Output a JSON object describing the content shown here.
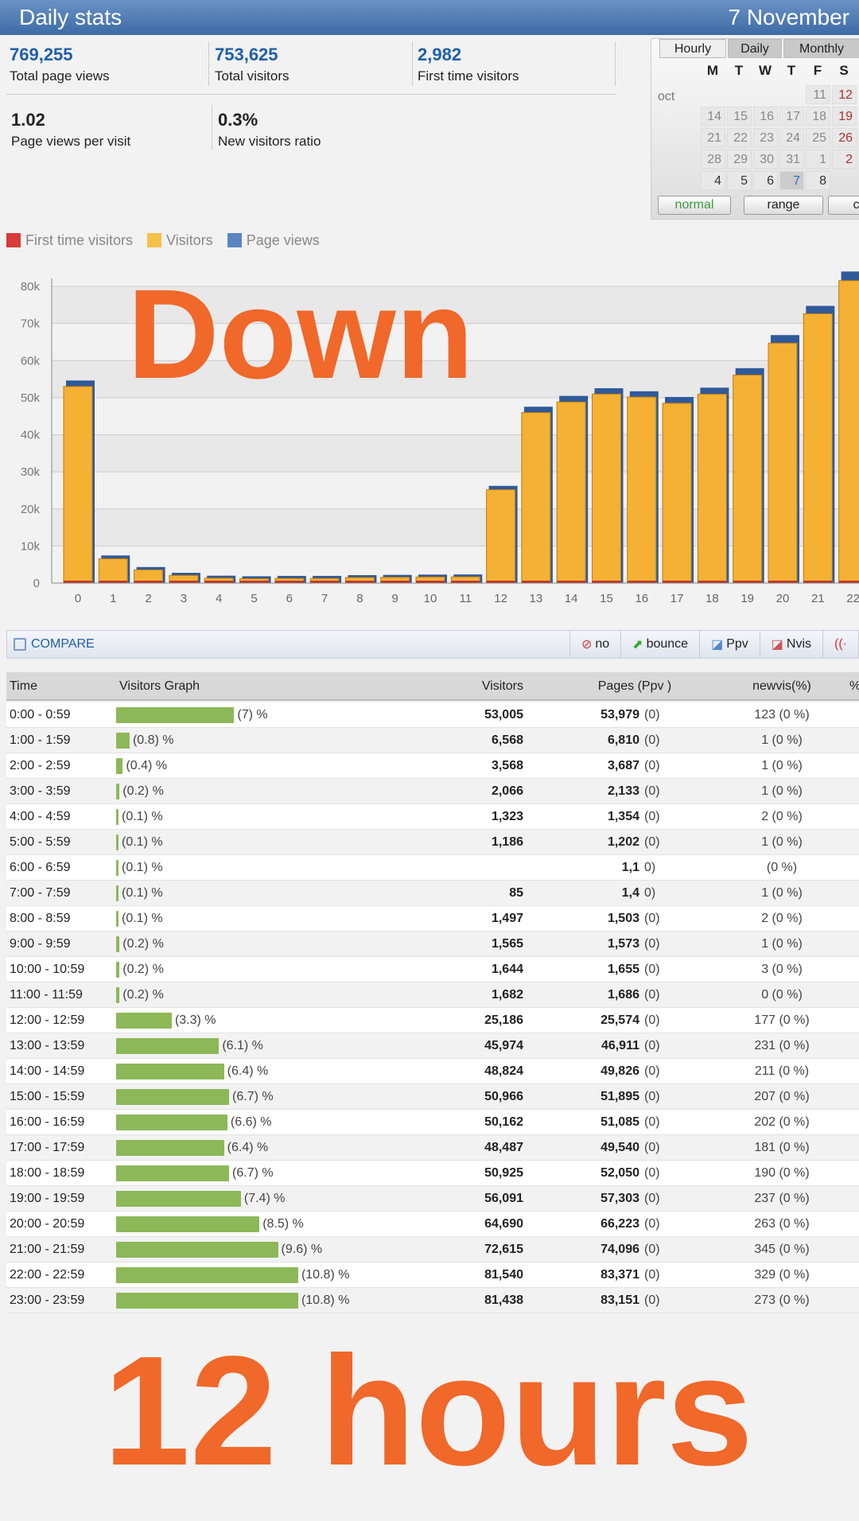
{
  "header": {
    "title": "Daily stats",
    "date": "7 November"
  },
  "stats": [
    {
      "value": "769,255",
      "label": "Total page views"
    },
    {
      "value": "753,625",
      "label": "Total visitors"
    },
    {
      "value": "2,982",
      "label": "First time visitors"
    },
    {
      "value": "1.02",
      "label": "Page views per visit"
    },
    {
      "value": "0.3%",
      "label": "New visitors ratio"
    }
  ],
  "calendar": {
    "tabs": [
      "Hourly",
      "Daily",
      "Monthly"
    ],
    "weekdays": [
      "M",
      "T",
      "W",
      "T",
      "F",
      "S"
    ],
    "month": "oct",
    "weeks": [
      [
        "",
        "",
        "",
        "",
        "11",
        "12"
      ],
      [
        "14",
        "15",
        "16",
        "17",
        "18",
        "19"
      ],
      [
        "21",
        "22",
        "23",
        "24",
        "25",
        "26"
      ],
      [
        "28",
        "29",
        "30",
        "31",
        "1",
        "2"
      ],
      [
        "4",
        "5",
        "6",
        "7",
        "8",
        ""
      ]
    ],
    "selected": "7",
    "buttons": [
      "normal",
      "range",
      "co"
    ]
  },
  "legend": [
    {
      "label": "First time visitors",
      "color": "#d93a3a"
    },
    {
      "label": "Visitors",
      "color": "#f5c04a"
    },
    {
      "label": "Page views",
      "color": "#5a86c0"
    }
  ],
  "chart_data": {
    "type": "bar",
    "categories": [
      "0",
      "1",
      "2",
      "3",
      "4",
      "5",
      "6",
      "7",
      "8",
      "9",
      "10",
      "11",
      "12",
      "13",
      "14",
      "15",
      "16",
      "17",
      "18",
      "19",
      "20",
      "21",
      "22"
    ],
    "ylim": [
      0,
      80000
    ],
    "yticks": [
      "0",
      "10k",
      "20k",
      "30k",
      "40k",
      "50k",
      "60k",
      "70k",
      "80k"
    ],
    "grid": true,
    "series": [
      {
        "name": "First time visitors",
        "values": [
          123,
          1,
          1,
          1,
          2,
          1,
          null,
          1,
          2,
          1,
          3,
          0,
          177,
          231,
          211,
          207,
          202,
          181,
          190,
          237,
          263,
          345,
          329
        ]
      },
      {
        "name": "Visitors",
        "values": [
          53005,
          6568,
          3568,
          2066,
          1323,
          1186,
          null,
          null,
          1497,
          1565,
          1644,
          1682,
          25186,
          45974,
          48824,
          50966,
          50162,
          48487,
          50925,
          56091,
          64690,
          72615,
          81540
        ]
      },
      {
        "name": "Page views",
        "values": [
          53979,
          6810,
          3687,
          2133,
          1354,
          1202,
          null,
          null,
          1503,
          1573,
          1655,
          1686,
          25574,
          46911,
          49826,
          51895,
          51085,
          49540,
          52050,
          57303,
          66223,
          74096,
          83371
        ]
      }
    ]
  },
  "compare": {
    "label": "COMPARE",
    "options": [
      "no",
      "bounce",
      "Ppv",
      "Nvis"
    ]
  },
  "table": {
    "headers": [
      "Time",
      "Visitors Graph",
      "Visitors",
      "Pages (Ppv )",
      "newvis(%)",
      "%"
    ],
    "rows": [
      [
        "0:00 - 0:59",
        7,
        "(7) %",
        "53,005",
        "53,979",
        "(0)",
        "123 (0 %)"
      ],
      [
        "1:00 - 1:59",
        0.8,
        "(0.8) %",
        "6,568",
        "6,810",
        "(0)",
        "1 (0 %)"
      ],
      [
        "2:00 - 2:59",
        0.4,
        "(0.4) %",
        "3,568",
        "3,687",
        "(0)",
        "1 (0 %)"
      ],
      [
        "3:00 - 3:59",
        0.2,
        "(0.2) %",
        "2,066",
        "2,133",
        "(0)",
        "1 (0 %)"
      ],
      [
        "4:00 - 4:59",
        0.1,
        "(0.1) %",
        "1,323",
        "1,354",
        "(0)",
        "2 (0 %)"
      ],
      [
        "5:00 - 5:59",
        0.1,
        "(0.1) %",
        "1,186",
        "1,202",
        "(0)",
        "1 (0 %)"
      ],
      [
        "6:00 - 6:59",
        0.1,
        "(0.1) %",
        "",
        "1,1",
        "0)",
        "(0 %)"
      ],
      [
        "7:00 - 7:59",
        0.1,
        "(0.1) %",
        "85",
        "1,4",
        "0)",
        "1 (0 %)"
      ],
      [
        "8:00 - 8:59",
        0.1,
        "(0.1) %",
        "1,497",
        "1,503",
        "(0)",
        "2 (0 %)"
      ],
      [
        "9:00 - 9:59",
        0.2,
        "(0.2) %",
        "1,565",
        "1,573",
        "(0)",
        "1 (0 %)"
      ],
      [
        "10:00 - 10:59",
        0.2,
        "(0.2) %",
        "1,644",
        "1,655",
        "(0)",
        "3 (0 %)"
      ],
      [
        "11:00 - 11:59",
        0.2,
        "(0.2) %",
        "1,682",
        "1,686",
        "(0)",
        "0 (0 %)"
      ],
      [
        "12:00 - 12:59",
        3.3,
        "(3.3) %",
        "25,186",
        "25,574",
        "(0)",
        "177 (0 %)"
      ],
      [
        "13:00 - 13:59",
        6.1,
        "(6.1) %",
        "45,974",
        "46,911",
        "(0)",
        "231 (0 %)"
      ],
      [
        "14:00 - 14:59",
        6.4,
        "(6.4) %",
        "48,824",
        "49,826",
        "(0)",
        "211 (0 %)"
      ],
      [
        "15:00 - 15:59",
        6.7,
        "(6.7) %",
        "50,966",
        "51,895",
        "(0)",
        "207 (0 %)"
      ],
      [
        "16:00 - 16:59",
        6.6,
        "(6.6) %",
        "50,162",
        "51,085",
        "(0)",
        "202 (0 %)"
      ],
      [
        "17:00 - 17:59",
        6.4,
        "(6.4) %",
        "48,487",
        "49,540",
        "(0)",
        "181 (0 %)"
      ],
      [
        "18:00 - 18:59",
        6.7,
        "(6.7) %",
        "50,925",
        "52,050",
        "(0)",
        "190 (0 %)"
      ],
      [
        "19:00 - 19:59",
        7.4,
        "(7.4) %",
        "56,091",
        "57,303",
        "(0)",
        "237 (0 %)"
      ],
      [
        "20:00 - 20:59",
        8.5,
        "(8.5) %",
        "64,690",
        "66,223",
        "(0)",
        "263 (0 %)"
      ],
      [
        "21:00 - 21:59",
        9.6,
        "(9.6) %",
        "72,615",
        "74,096",
        "(0)",
        "345 (0 %)"
      ],
      [
        "22:00 - 22:59",
        10.8,
        "(10.8) %",
        "81,540",
        "83,371",
        "(0)",
        "329 (0 %)"
      ],
      [
        "23:00 - 23:59",
        10.8,
        "(10.8) %",
        "81,438",
        "83,151",
        "(0)",
        "273 (0 %)"
      ]
    ]
  },
  "overlay": {
    "top": "Down",
    "bottom": "12 hours",
    "color": "#f0682a"
  }
}
